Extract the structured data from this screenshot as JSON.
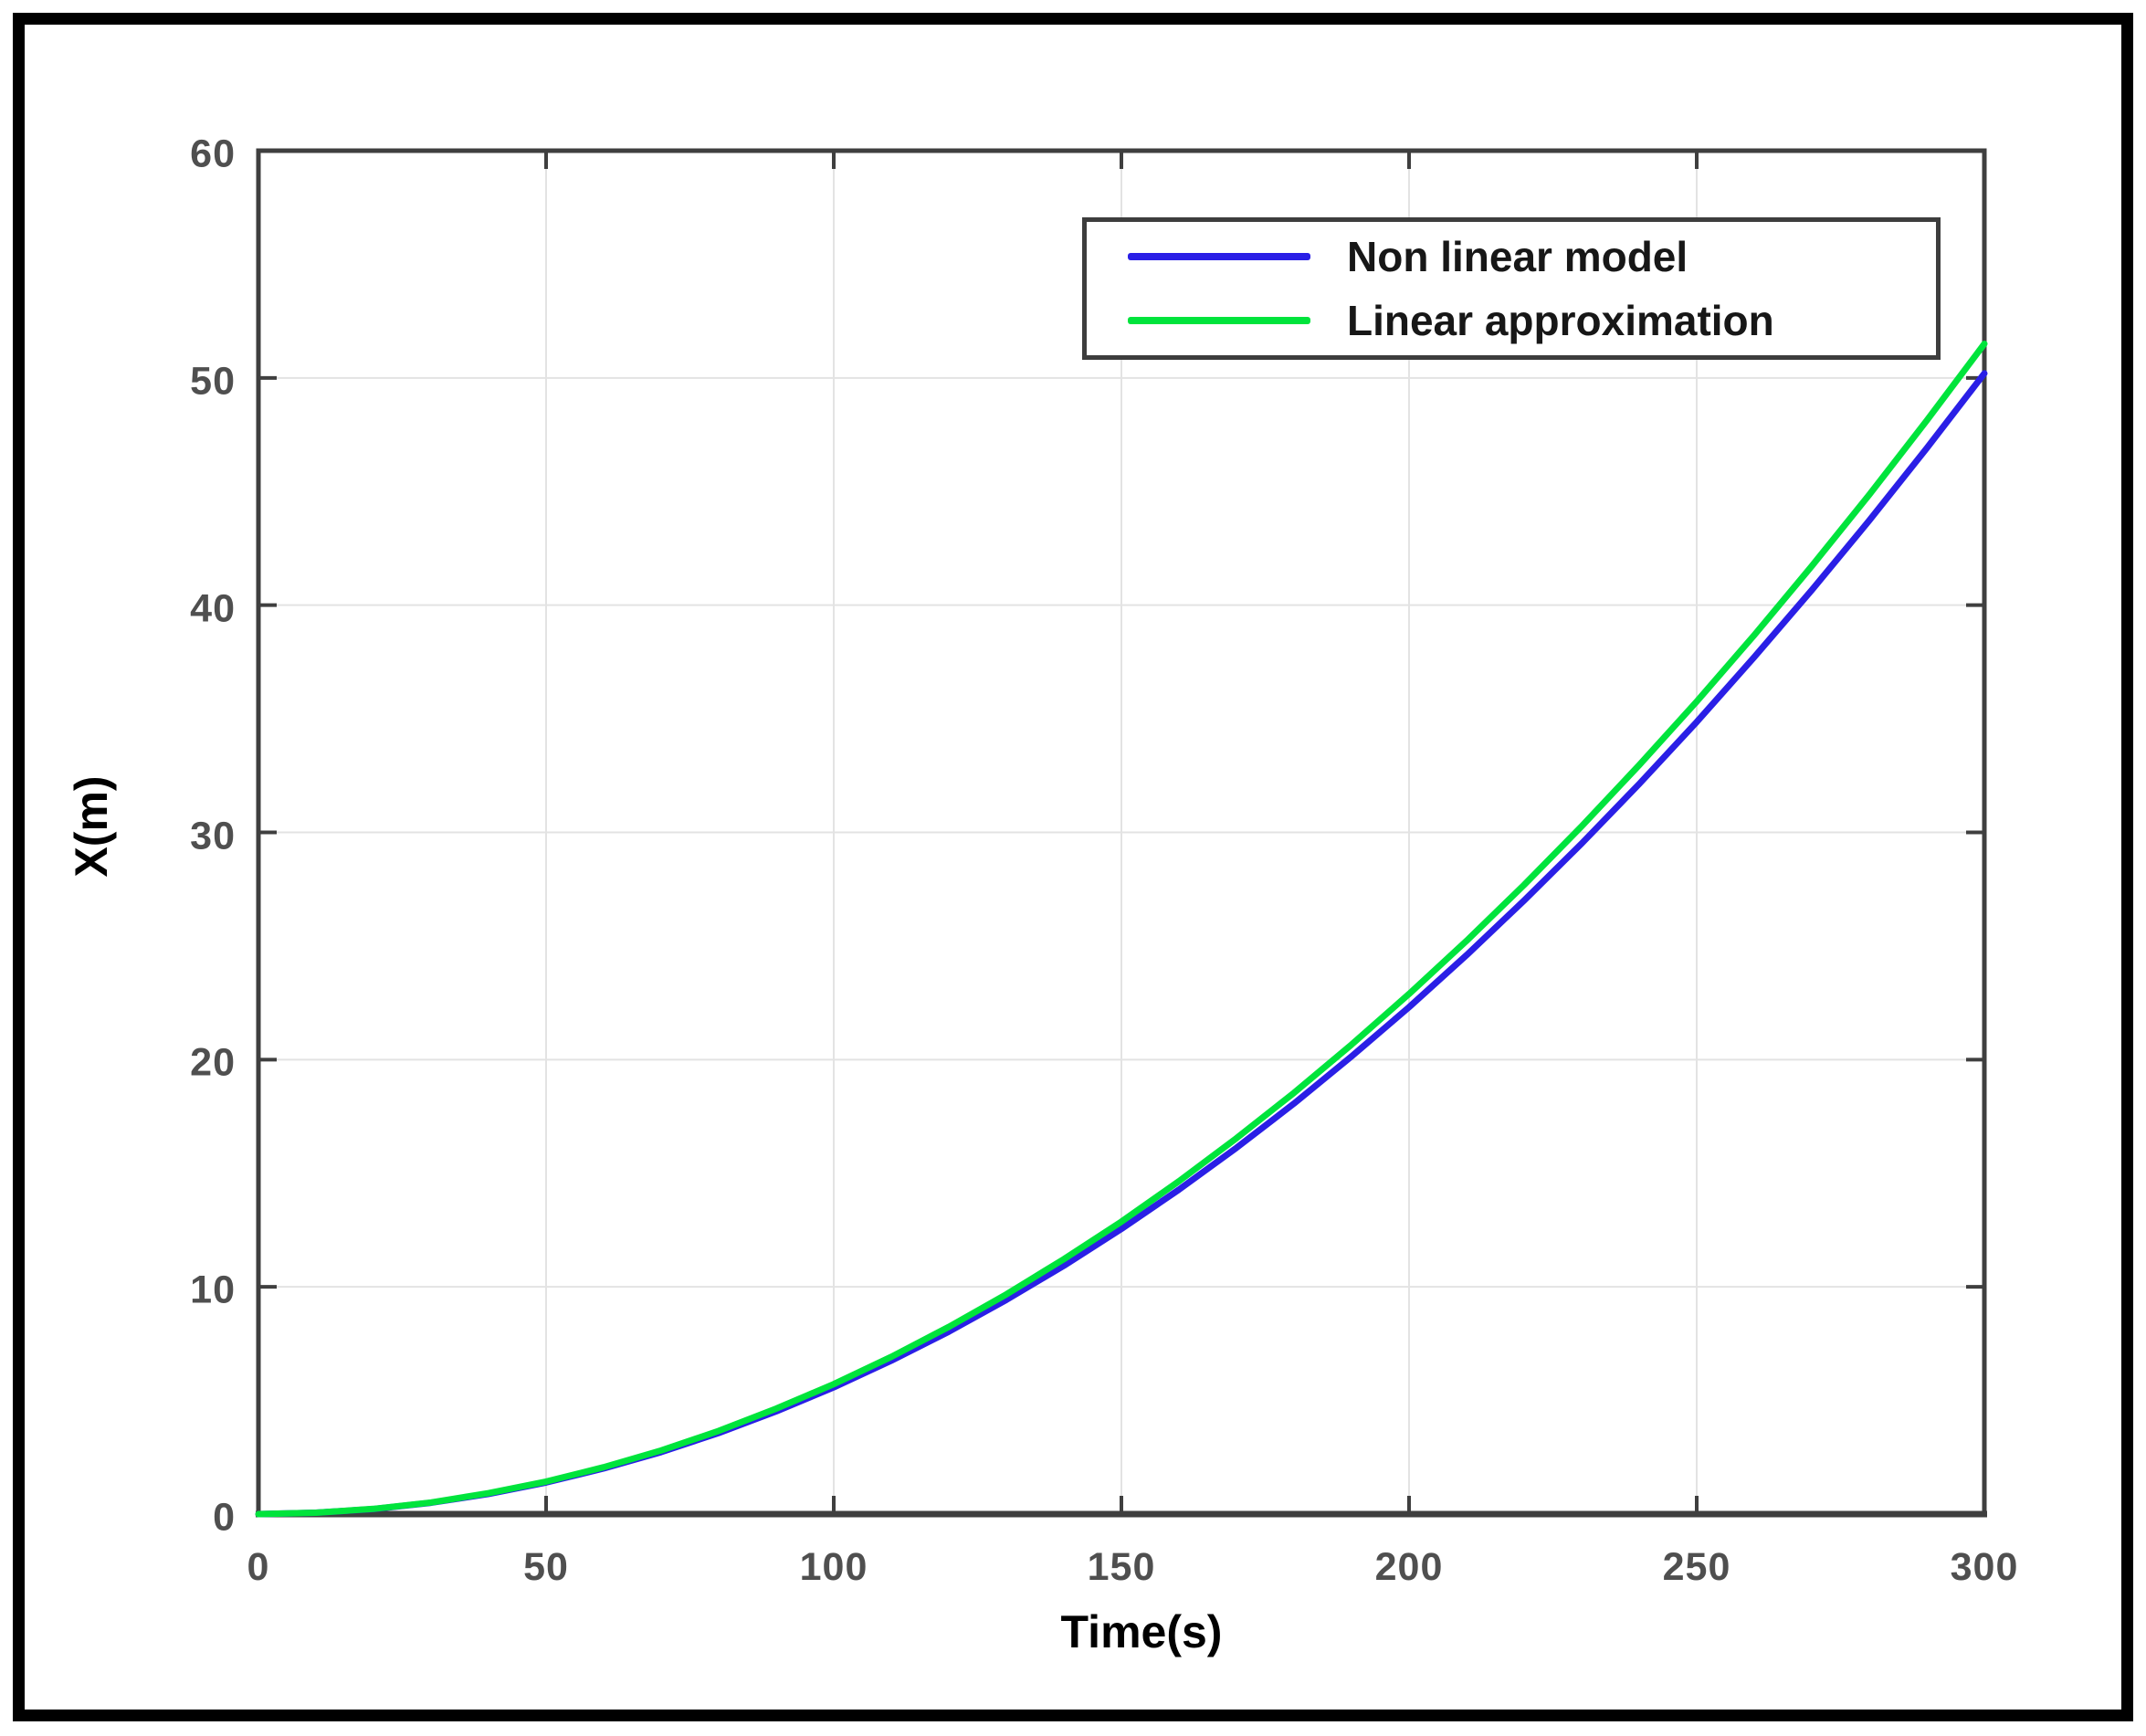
{
  "figure": {
    "border_color": "#000000",
    "background_color": "#ffffff",
    "axis_frame_color": "#3f3f3f",
    "grid_color": "#e3e3e3",
    "tick_label_color": "#4f4f4f"
  },
  "chart_data": {
    "type": "line",
    "title": "",
    "xlabel": "Time(s)",
    "ylabel": "X(m)",
    "xlim": [
      0,
      300
    ],
    "ylim": [
      0,
      60
    ],
    "xticks": [
      0,
      50,
      100,
      150,
      200,
      250,
      300
    ],
    "yticks": [
      0,
      10,
      20,
      30,
      40,
      50,
      60
    ],
    "grid": true,
    "legend_position": "top-right",
    "x": [
      0,
      10,
      20,
      30,
      40,
      50,
      60,
      70,
      80,
      90,
      100,
      110,
      120,
      130,
      140,
      150,
      160,
      170,
      180,
      190,
      200,
      210,
      220,
      230,
      240,
      250,
      260,
      270,
      280,
      290,
      300
    ],
    "series": [
      {
        "name": "Non linear model",
        "color": "#2a1fe6",
        "values": [
          0,
          0.06,
          0.22,
          0.5,
          0.89,
          1.39,
          2.01,
          2.73,
          3.57,
          4.52,
          5.58,
          6.75,
          8.03,
          9.43,
          10.93,
          12.55,
          14.28,
          16.12,
          18.07,
          20.14,
          22.31,
          24.6,
          27.0,
          29.51,
          32.13,
          34.86,
          37.71,
          40.66,
          43.73,
          46.91,
          50.2
        ]
      },
      {
        "name": "Linear approximation",
        "color": "#00e43c",
        "values": [
          0,
          0.06,
          0.23,
          0.51,
          0.92,
          1.43,
          2.06,
          2.8,
          3.66,
          4.64,
          5.72,
          6.92,
          8.24,
          9.67,
          11.22,
          12.87,
          14.65,
          16.54,
          18.54,
          20.66,
          22.89,
          25.23,
          27.69,
          30.27,
          32.96,
          35.76,
          38.68,
          41.72,
          44.86,
          48.13,
          51.5
        ]
      }
    ]
  }
}
